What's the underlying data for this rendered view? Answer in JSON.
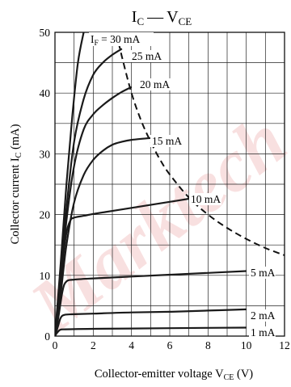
{
  "chart_data": {
    "type": "line",
    "title": "I",
    "title_parts": {
      "main": "I",
      "sub1": "C",
      "dash": "—",
      "main2": "V",
      "sub2": "CE"
    },
    "xlabel": {
      "text": "Collector-emitter voltage  V",
      "sub": "CE",
      "unit": "  (V)"
    },
    "ylabel": {
      "text": "Collector current  I",
      "sub": "C",
      "unit": "  (mA)"
    },
    "xlim": [
      0,
      12
    ],
    "ylim": [
      0,
      50
    ],
    "x_ticks": [
      0,
      2,
      4,
      6,
      8,
      10,
      12
    ],
    "y_ticks": [
      0,
      10,
      20,
      30,
      40,
      50
    ],
    "grid": true,
    "watermark": "Marktech",
    "series": [
      {
        "name": "I",
        "label_parts": {
          "main": "I",
          "sub": "F",
          "rest": " = 30 mA"
        },
        "x": [
          0,
          0.3,
          0.6,
          0.9,
          1.2,
          1.5
        ],
        "y": [
          0,
          12,
          25,
          36,
          45,
          50
        ]
      },
      {
        "name": "25 mA",
        "label_parts": {
          "main": "25 mA"
        },
        "x": [
          0,
          0.3,
          0.6,
          1.0,
          1.5,
          2.0,
          2.5,
          3.0,
          3.5
        ],
        "y": [
          0,
          10,
          21,
          32,
          39,
          43,
          45,
          46.3,
          47.3
        ]
      },
      {
        "name": "20 mA",
        "label_parts": {
          "main": "20 mA"
        },
        "x": [
          0,
          0.3,
          0.6,
          1.0,
          1.5,
          2.0,
          2.5,
          3.0,
          3.5,
          4.0
        ],
        "y": [
          0,
          9,
          19,
          28,
          34,
          36.5,
          38,
          39.2,
          40.2,
          41
        ]
      },
      {
        "name": "15 mA",
        "label_parts": {
          "main": "15 mA"
        },
        "x": [
          0,
          0.3,
          0.6,
          1.0,
          1.5,
          2.0,
          2.5,
          3.0,
          3.5,
          4.0,
          5.0
        ],
        "y": [
          0,
          7,
          15,
          22,
          26.5,
          29,
          30.5,
          31.5,
          32,
          32.3,
          32.6
        ]
      },
      {
        "name": "10 mA",
        "label_parts": {
          "main": "10 mA"
        },
        "x": [
          0,
          0.2,
          0.4,
          0.6,
          0.8,
          1.0,
          1.5,
          2.0,
          3.0,
          4.0,
          5.0,
          6.0,
          7.0
        ],
        "y": [
          0,
          5,
          12,
          17,
          19,
          19.5,
          19.8,
          20.1,
          20.6,
          21.1,
          21.6,
          22.1,
          22.6
        ]
      },
      {
        "name": "5 mA",
        "label_parts": {
          "main": "5 mA"
        },
        "x": [
          0,
          0.2,
          0.4,
          0.6,
          1.0,
          2.0,
          4.0,
          6.0,
          8.0,
          10.0
        ],
        "y": [
          0,
          3.5,
          7.5,
          9.0,
          9.3,
          9.5,
          9.8,
          10.1,
          10.4,
          10.7
        ]
      },
      {
        "name": "2 mA",
        "label_parts": {
          "main": "2 mA"
        },
        "x": [
          0,
          0.15,
          0.3,
          0.5,
          1.0,
          2.0,
          4.0,
          6.0,
          8.0,
          10.0
        ],
        "y": [
          0,
          1.5,
          3.0,
          3.5,
          3.6,
          3.7,
          3.9,
          4.0,
          4.2,
          4.4
        ]
      },
      {
        "name": "1 mA",
        "label_parts": {
          "main": "1 mA"
        },
        "x": [
          0,
          0.1,
          0.25,
          0.4,
          1.0,
          2.0,
          4.0,
          6.0,
          8.0,
          10.0
        ],
        "y": [
          0,
          0.5,
          1.0,
          1.1,
          1.15,
          1.2,
          1.25,
          1.3,
          1.35,
          1.4
        ]
      }
    ],
    "dashed_curve": {
      "name": "",
      "x": [
        3.2,
        3.5,
        4.0,
        4.5,
        5.0,
        5.5,
        6.0,
        7.0,
        8.0,
        9.0,
        10.0,
        11.0,
        12.0
      ],
      "y": [
        50,
        46,
        40,
        35.5,
        32,
        29,
        26.6,
        22.8,
        20,
        17.8,
        16,
        14.5,
        13.3
      ]
    }
  }
}
